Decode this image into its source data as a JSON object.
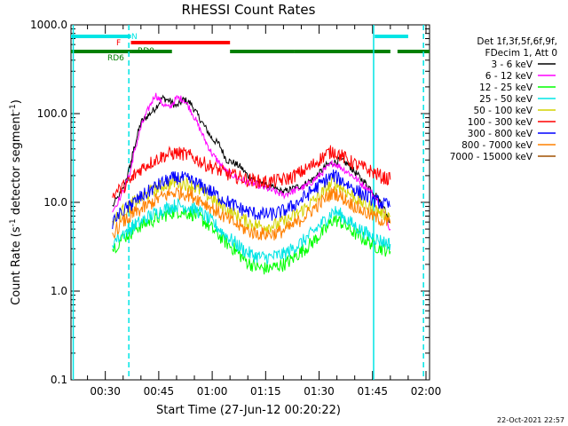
{
  "chart_data": {
    "type": "line",
    "title": "RHESSI Count Rates",
    "xlabel": "Start Time (27-Jun-12 00:20:22)",
    "ylabel": "Count Rate (s",
    "ylabel_sup": "-1",
    "ylabel_tail": " detector segment",
    "ylabel_sup2": "-1",
    "ylabel_close": ")",
    "yscale": "log",
    "ylim": [
      0.1,
      1000
    ],
    "xlim_minutes": [
      20.37,
      121.0
    ],
    "x_ticks": [
      "00:30",
      "00:45",
      "01:00",
      "01:15",
      "01:30",
      "01:45",
      "02:00"
    ],
    "x_tick_minutes": [
      30,
      45,
      60,
      75,
      90,
      105,
      120
    ],
    "y_ticks": [
      "0.1",
      "1.0",
      "10.0",
      "100.0",
      "1000.0"
    ],
    "y_tick_values": [
      0.1,
      1,
      10,
      100,
      1000
    ],
    "timestamp": "22-Oct-2021 22:57",
    "legend_header": [
      "Det 1f,3f,5f,6f,9f,",
      "FDecim 1, Att 0"
    ],
    "series": [
      {
        "name": "3 - 6 keV",
        "color": "#000000",
        "x": [
          32,
          35,
          37,
          38,
          40,
          42,
          44,
          46,
          48,
          50,
          52,
          54,
          56,
          58,
          60,
          62,
          64,
          66,
          68,
          70,
          72,
          74,
          76,
          78,
          80,
          82,
          84,
          86,
          88,
          90,
          92,
          94,
          96,
          98,
          100,
          102,
          104,
          106,
          108,
          110
        ],
        "y": [
          9,
          14,
          26,
          40,
          80,
          95,
          115,
          150,
          140,
          120,
          145,
          130,
          95,
          70,
          52,
          45,
          30,
          28,
          25,
          20,
          18,
          16,
          15,
          14,
          13,
          14,
          15,
          16,
          18,
          21,
          26,
          28,
          30,
          27,
          22,
          18,
          15,
          12,
          9,
          6
        ]
      },
      {
        "name": "6 - 12 keV",
        "color": "#ff00ff",
        "x": [
          32,
          35,
          37,
          38,
          40,
          42,
          44,
          46,
          48,
          50,
          52,
          54,
          56,
          58,
          60,
          62,
          64,
          66,
          68,
          70,
          72,
          74,
          76,
          78,
          80,
          82,
          84,
          86,
          88,
          90,
          92,
          94,
          96,
          98,
          100,
          102,
          104,
          106,
          108,
          110
        ],
        "y": [
          8,
          13,
          22,
          35,
          70,
          110,
          165,
          130,
          115,
          150,
          145,
          110,
          75,
          50,
          35,
          28,
          22,
          20,
          18,
          17,
          16,
          15,
          14,
          13,
          12,
          13,
          14,
          15,
          17,
          20,
          24,
          28,
          25,
          22,
          19,
          16,
          14,
          11,
          8,
          5
        ]
      },
      {
        "name": "12 - 25 keV",
        "color": "#00ff00",
        "x": [
          32,
          35,
          37,
          38,
          40,
          42,
          44,
          46,
          48,
          50,
          52,
          54,
          56,
          58,
          60,
          62,
          64,
          66,
          68,
          70,
          72,
          74,
          76,
          78,
          80,
          82,
          84,
          86,
          88,
          90,
          92,
          94,
          96,
          98,
          100,
          102,
          104,
          106,
          108,
          110
        ],
        "y": [
          3,
          4,
          4.5,
          5,
          5.5,
          6,
          6.5,
          7,
          7.5,
          8,
          7.8,
          7.5,
          7,
          6,
          5,
          4.2,
          3.5,
          3,
          2.5,
          2.1,
          1.9,
          1.8,
          1.8,
          1.9,
          2,
          2.2,
          2.6,
          3,
          3.5,
          4.2,
          5,
          6.5,
          6,
          5.2,
          4.5,
          4,
          3.6,
          3.2,
          3,
          2.8
        ]
      },
      {
        "name": "25 - 50 keV",
        "color": "#00e5e5",
        "x": [
          32,
          35,
          37,
          38,
          40,
          42,
          44,
          46,
          48,
          50,
          52,
          54,
          56,
          58,
          60,
          62,
          64,
          66,
          68,
          70,
          72,
          74,
          76,
          78,
          80,
          82,
          84,
          86,
          88,
          90,
          92,
          94,
          96,
          98,
          100,
          102,
          104,
          106,
          108,
          110
        ],
        "y": [
          3.5,
          4.5,
          5,
          5.5,
          6,
          6.8,
          7.5,
          8.2,
          8.8,
          9.3,
          9.1,
          8.7,
          8,
          7,
          6,
          5,
          4.2,
          3.6,
          3.1,
          2.7,
          2.5,
          2.4,
          2.4,
          2.5,
          2.6,
          2.9,
          3.3,
          3.8,
          4.5,
          5.4,
          6.5,
          8,
          7.3,
          6.3,
          5.4,
          4.8,
          4.3,
          3.9,
          3.6,
          3.4
        ]
      },
      {
        "name": "50 - 100 keV",
        "color": "#d4d400",
        "x": [
          32,
          35,
          37,
          38,
          40,
          42,
          44,
          46,
          48,
          50,
          52,
          54,
          56,
          58,
          60,
          62,
          64,
          66,
          68,
          70,
          72,
          74,
          76,
          78,
          80,
          82,
          84,
          86,
          88,
          90,
          92,
          94,
          96,
          98,
          100,
          102,
          104,
          106,
          108,
          110
        ],
        "y": [
          6,
          8,
          9,
          10,
          11,
          12.5,
          14,
          15.5,
          16.5,
          17,
          16.5,
          15.5,
          14,
          12.5,
          11,
          9.5,
          8.3,
          7.4,
          6.6,
          6,
          5.6,
          5.4,
          5.4,
          5.6,
          6,
          6.6,
          7.5,
          8.6,
          10,
          11.8,
          14,
          17,
          15,
          13,
          11.5,
          10,
          9,
          8.2,
          7.5,
          7
        ]
      },
      {
        "name": "100 - 300 keV",
        "color": "#ff0000",
        "x": [
          32,
          35,
          37,
          38,
          40,
          42,
          44,
          46,
          48,
          50,
          52,
          54,
          56,
          58,
          60,
          62,
          64,
          66,
          68,
          70,
          72,
          74,
          76,
          78,
          80,
          82,
          84,
          86,
          88,
          90,
          92,
          94,
          96,
          98,
          100,
          102,
          104,
          106,
          108,
          110
        ],
        "y": [
          12,
          15,
          17,
          20,
          24,
          27,
          30,
          33,
          35,
          36,
          35,
          33,
          30,
          27,
          25,
          23,
          21,
          20,
          19,
          18,
          17.5,
          17,
          17,
          17.5,
          18,
          19,
          21,
          23,
          26,
          30,
          35,
          38,
          34,
          30,
          27,
          25,
          23,
          21,
          19,
          18
        ]
      },
      {
        "name": "300 - 800 keV",
        "color": "#0000ff",
        "x": [
          32,
          35,
          37,
          38,
          40,
          42,
          44,
          46,
          48,
          50,
          52,
          54,
          56,
          58,
          60,
          62,
          64,
          66,
          68,
          70,
          72,
          74,
          76,
          78,
          80,
          82,
          84,
          86,
          88,
          90,
          92,
          94,
          96,
          98,
          100,
          102,
          104,
          106,
          108,
          110
        ],
        "y": [
          6,
          8,
          9,
          10,
          11.5,
          13,
          15,
          16.5,
          18,
          19,
          18.5,
          17.5,
          16,
          14.5,
          13,
          11.5,
          10.3,
          9.3,
          8.5,
          7.9,
          7.5,
          7.3,
          7.3,
          7.5,
          8,
          8.8,
          10,
          11.5,
          13.5,
          15.5,
          18,
          20,
          18,
          16,
          14,
          12.5,
          11.3,
          10.3,
          9.6,
          9
        ]
      },
      {
        "name": "800 - 7000 keV",
        "color": "#ff8000",
        "x": [
          32,
          35,
          37,
          38,
          40,
          42,
          44,
          46,
          48,
          50,
          52,
          54,
          56,
          58,
          60,
          62,
          64,
          66,
          68,
          70,
          72,
          74,
          76,
          78,
          80,
          82,
          84,
          86,
          88,
          90,
          92,
          94,
          96,
          98,
          100,
          102,
          104,
          106,
          108,
          110
        ],
        "y": [
          4.5,
          6,
          6.8,
          7.5,
          8.3,
          9.3,
          10.5,
          11.6,
          12.5,
          13,
          12.7,
          12,
          11,
          9.8,
          8.6,
          7.5,
          6.6,
          5.9,
          5.3,
          4.8,
          4.5,
          4.4,
          4.4,
          4.5,
          4.8,
          5.3,
          6,
          7,
          8.2,
          9.6,
          11.3,
          13,
          11.7,
          10.3,
          9.1,
          8.1,
          7.3,
          6.7,
          6.2,
          5.8
        ]
      },
      {
        "name": "7000 - 15000 keV",
        "color": "#a05000",
        "x": [],
        "y": []
      }
    ],
    "attenuator_bars": [
      {
        "label": "N",
        "color": "#00e5e5",
        "segments": [
          [
            20.37,
            37.2
          ],
          [
            105.6,
            115
          ]
        ]
      },
      {
        "label": "F",
        "color": "#ff0000",
        "segments": [
          [
            37.2,
            65
          ]
        ]
      },
      {
        "label": "RD0",
        "color": "#008000",
        "segments": [
          [
            20.37,
            37.2
          ],
          [
            37.2,
            48.7
          ],
          [
            65,
            83
          ],
          [
            83,
            110
          ],
          [
            112,
            121
          ]
        ]
      }
    ],
    "vertical_markers": [
      {
        "minute": 21.0,
        "style": "solid"
      },
      {
        "minute": 36.6,
        "style": "dashed"
      },
      {
        "minute": 105.3,
        "style": "solid"
      },
      {
        "minute": 119.3,
        "style": "dashed"
      }
    ]
  }
}
